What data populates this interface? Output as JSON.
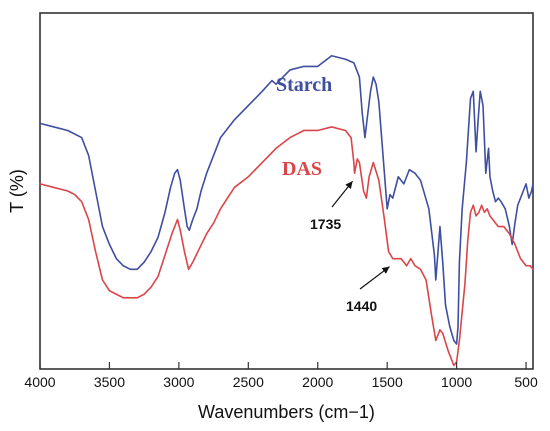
{
  "chart_data": {
    "type": "line",
    "title": "",
    "xlabel": "Wavenumbers (cm−1)",
    "ylabel": "T (%)",
    "xlim": [
      4000,
      450
    ],
    "x_reversed": true,
    "ylim": [
      0,
      100
    ],
    "ytick_labels_shown": false,
    "grid": false,
    "legend": "none; series labeled directly on plot",
    "xticks": [
      4000,
      3500,
      3000,
      2500,
      2000,
      1500,
      1000,
      500
    ],
    "xtick_labels": [
      "4000",
      "3500",
      "3000",
      "2500",
      "2000",
      "1500",
      "1000",
      "500"
    ],
    "series": [
      {
        "name": "Starch",
        "color": "#3f4fa0",
        "label_text": "Starch",
        "points": [
          [
            4000,
            69
          ],
          [
            3900,
            68
          ],
          [
            3800,
            67
          ],
          [
            3700,
            65
          ],
          [
            3650,
            60
          ],
          [
            3600,
            50
          ],
          [
            3550,
            40
          ],
          [
            3500,
            35
          ],
          [
            3450,
            31
          ],
          [
            3400,
            29
          ],
          [
            3350,
            28
          ],
          [
            3300,
            28
          ],
          [
            3250,
            30
          ],
          [
            3200,
            33
          ],
          [
            3150,
            37
          ],
          [
            3100,
            44
          ],
          [
            3060,
            51
          ],
          [
            3030,
            55
          ],
          [
            3010,
            56
          ],
          [
            2990,
            53
          ],
          [
            2960,
            45
          ],
          [
            2940,
            40
          ],
          [
            2925,
            39
          ],
          [
            2900,
            42
          ],
          [
            2870,
            45
          ],
          [
            2840,
            50
          ],
          [
            2800,
            55
          ],
          [
            2750,
            60
          ],
          [
            2700,
            65
          ],
          [
            2600,
            70
          ],
          [
            2500,
            74
          ],
          [
            2400,
            78
          ],
          [
            2330,
            81
          ],
          [
            2300,
            80
          ],
          [
            2200,
            84
          ],
          [
            2100,
            85
          ],
          [
            2000,
            85
          ],
          [
            1900,
            88
          ],
          [
            1800,
            87
          ],
          [
            1740,
            86
          ],
          [
            1700,
            82
          ],
          [
            1680,
            72
          ],
          [
            1660,
            65
          ],
          [
            1645,
            70
          ],
          [
            1620,
            78
          ],
          [
            1600,
            82
          ],
          [
            1580,
            80
          ],
          [
            1560,
            75
          ],
          [
            1530,
            60
          ],
          [
            1500,
            45
          ],
          [
            1480,
            49
          ],
          [
            1460,
            48
          ],
          [
            1420,
            54
          ],
          [
            1380,
            52
          ],
          [
            1340,
            56
          ],
          [
            1300,
            55
          ],
          [
            1260,
            53
          ],
          [
            1200,
            45
          ],
          [
            1160,
            32
          ],
          [
            1150,
            25
          ],
          [
            1120,
            40
          ],
          [
            1100,
            30
          ],
          [
            1080,
            18
          ],
          [
            1050,
            12
          ],
          [
            1020,
            8
          ],
          [
            1000,
            7
          ],
          [
            990,
            12
          ],
          [
            980,
            30
          ],
          [
            960,
            45
          ],
          [
            930,
            58
          ],
          [
            900,
            76
          ],
          [
            880,
            78
          ],
          [
            860,
            61
          ],
          [
            845,
            70
          ],
          [
            830,
            78
          ],
          [
            810,
            74
          ],
          [
            790,
            55
          ],
          [
            770,
            62
          ],
          [
            760,
            54
          ],
          [
            740,
            50
          ],
          [
            720,
            47
          ],
          [
            700,
            48
          ],
          [
            680,
            47
          ],
          [
            650,
            45
          ],
          [
            620,
            40
          ],
          [
            600,
            35
          ],
          [
            580,
            41
          ],
          [
            560,
            46
          ],
          [
            540,
            48
          ],
          [
            520,
            50
          ],
          [
            500,
            52
          ],
          [
            480,
            48
          ],
          [
            460,
            50
          ],
          [
            450,
            52
          ]
        ]
      },
      {
        "name": "DAS",
        "color": "#d9464a",
        "label_text": "DAS",
        "points": [
          [
            4000,
            52
          ],
          [
            3900,
            51
          ],
          [
            3800,
            50
          ],
          [
            3750,
            49
          ],
          [
            3700,
            47
          ],
          [
            3650,
            42
          ],
          [
            3600,
            33
          ],
          [
            3550,
            25
          ],
          [
            3500,
            22
          ],
          [
            3450,
            21
          ],
          [
            3400,
            20
          ],
          [
            3350,
            20
          ],
          [
            3300,
            20
          ],
          [
            3250,
            21
          ],
          [
            3200,
            23
          ],
          [
            3150,
            26
          ],
          [
            3100,
            32
          ],
          [
            3050,
            38
          ],
          [
            3010,
            42
          ],
          [
            2990,
            39
          ],
          [
            2960,
            33
          ],
          [
            2930,
            28
          ],
          [
            2900,
            30
          ],
          [
            2850,
            34
          ],
          [
            2800,
            38
          ],
          [
            2750,
            41
          ],
          [
            2700,
            45
          ],
          [
            2650,
            48
          ],
          [
            2600,
            51
          ],
          [
            2500,
            54
          ],
          [
            2400,
            58
          ],
          [
            2300,
            62
          ],
          [
            2200,
            65
          ],
          [
            2100,
            67
          ],
          [
            2000,
            67
          ],
          [
            1900,
            68
          ],
          [
            1800,
            67
          ],
          [
            1760,
            65
          ],
          [
            1740,
            58
          ],
          [
            1735,
            55
          ],
          [
            1715,
            59
          ],
          [
            1700,
            58
          ],
          [
            1670,
            50
          ],
          [
            1650,
            48
          ],
          [
            1630,
            54
          ],
          [
            1600,
            58
          ],
          [
            1560,
            53
          ],
          [
            1520,
            42
          ],
          [
            1490,
            33
          ],
          [
            1460,
            31
          ],
          [
            1440,
            31
          ],
          [
            1400,
            31
          ],
          [
            1360,
            29
          ],
          [
            1330,
            31
          ],
          [
            1300,
            29
          ],
          [
            1260,
            28
          ],
          [
            1220,
            25
          ],
          [
            1180,
            15
          ],
          [
            1150,
            8
          ],
          [
            1120,
            11
          ],
          [
            1100,
            10
          ],
          [
            1060,
            5
          ],
          [
            1020,
            1
          ],
          [
            1000,
            2
          ],
          [
            980,
            8
          ],
          [
            960,
            16
          ],
          [
            940,
            24
          ],
          [
            920,
            36
          ],
          [
            900,
            44
          ],
          [
            880,
            46
          ],
          [
            860,
            43
          ],
          [
            840,
            44
          ],
          [
            820,
            46
          ],
          [
            800,
            44
          ],
          [
            780,
            45
          ],
          [
            760,
            43
          ],
          [
            740,
            42
          ],
          [
            700,
            40
          ],
          [
            660,
            40
          ],
          [
            620,
            38
          ],
          [
            580,
            35
          ],
          [
            540,
            31
          ],
          [
            500,
            29
          ],
          [
            470,
            29
          ],
          [
            450,
            28
          ]
        ]
      }
    ],
    "annotations": [
      {
        "text": "1735",
        "x": 1735,
        "y": 55
      },
      {
        "text": "1440",
        "x": 1440,
        "y": 31
      }
    ]
  }
}
